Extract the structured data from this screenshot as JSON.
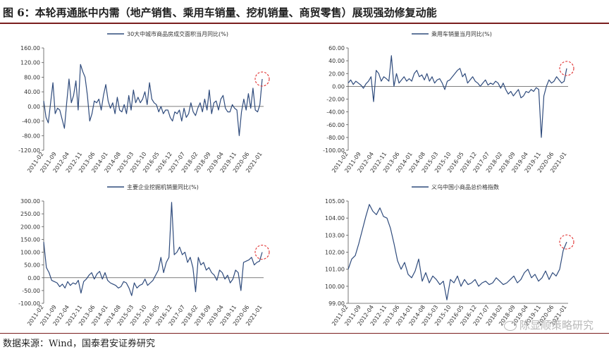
{
  "figure": {
    "title": "图 6：本轮再通胀中内需（地产销售、乘用车销量、挖机销量、商贸零售）展现强劲修复动能",
    "source": "数据来源：Wind，国泰君安证券研究",
    "watermark": "陈显顺策略研究",
    "line_color": "#2f4b7c",
    "highlight_color": "#e03030"
  },
  "chart_data": [
    {
      "type": "line",
      "series": [
        {
          "name": "30大中城市商品房成交面积当月同比(%)"
        }
      ],
      "ylim": [
        -120,
        160
      ],
      "yticks": [
        "160.00",
        "120.00",
        "80.00",
        "40.00",
        "0.00",
        "-40.00",
        "-80.00",
        "-120.00"
      ],
      "xlabels": [
        "2011-02",
        "2011-09",
        "2012-04",
        "2012-11",
        "2013-06",
        "2014-01",
        "2014-08",
        "2015-03",
        "2015-10",
        "2016-05",
        "2016-12",
        "2017-07",
        "2018-02",
        "2018-09",
        "2019-04",
        "2019-11",
        "2020-06",
        "2021-01"
      ],
      "values": [
        15,
        -30,
        -45,
        10,
        65,
        -20,
        -5,
        -10,
        -35,
        -60,
        10,
        75,
        10,
        30,
        70,
        -10,
        115,
        95,
        80,
        30,
        -40,
        -20,
        15,
        10,
        20,
        -10,
        30,
        60,
        15,
        -5,
        10,
        -20,
        25,
        -10,
        -15,
        5,
        -20,
        30,
        -10,
        45,
        10,
        25,
        10,
        20,
        40,
        5,
        65,
        20,
        10,
        5,
        -15,
        0,
        -20,
        -10,
        -10,
        -30,
        -40,
        -15,
        -20,
        -10,
        -40,
        -5,
        -30,
        -20,
        10,
        -15,
        -25,
        -5,
        10,
        -15,
        20,
        -10,
        45,
        -20,
        10,
        15,
        -10,
        20,
        30,
        -5,
        -15,
        -15,
        5,
        -5,
        -10,
        -80,
        -15,
        20,
        -10,
        35,
        -5,
        50,
        -10,
        -15,
        5,
        75
      ]
    },
    {
      "type": "line",
      "series": [
        {
          "name": "乘用车销量当月同比(%)"
        }
      ],
      "ylim": [
        -100,
        60
      ],
      "yticks": [
        "60.00",
        "40.00",
        "20.00",
        "0.00",
        "-20.00",
        "-40.00",
        "-60.00",
        "-80.00",
        "-100.00"
      ],
      "xlabels": [
        "2011-02",
        "2011-09",
        "2012-04",
        "2012-11",
        "2013-06",
        "2014-01",
        "2014-08",
        "2015-03",
        "2015-10",
        "2016-05",
        "2016-12",
        "2017-07",
        "2018-02",
        "2018-09",
        "2019-04",
        "2019-11",
        "2020-06",
        "2021-01"
      ],
      "values": [
        5,
        10,
        3,
        8,
        5,
        2,
        -3,
        4,
        8,
        15,
        -24,
        25,
        20,
        8,
        15,
        12,
        8,
        48,
        0,
        20,
        5,
        10,
        15,
        8,
        12,
        8,
        20,
        25,
        15,
        18,
        10,
        20,
        8,
        15,
        5,
        10,
        12,
        5,
        -5,
        8,
        10,
        15,
        20,
        25,
        28,
        15,
        20,
        5,
        10,
        15,
        8,
        5,
        0,
        5,
        10,
        2,
        5,
        3,
        8,
        5,
        -3,
        5,
        -5,
        -12,
        -8,
        -15,
        -10,
        -5,
        -18,
        -15,
        -8,
        -10,
        -5,
        -8,
        -2,
        -5,
        -80,
        -15,
        0,
        10,
        5,
        8,
        15,
        10,
        5,
        8,
        28
      ]
    },
    {
      "type": "line",
      "series": [
        {
          "name": "主要企业挖掘机销量同比(%)"
        }
      ],
      "ylim": [
        -100,
        300
      ],
      "yticks": [
        "300.00",
        "250.00",
        "200.00",
        "150.00",
        "100.00",
        "50.00",
        "0.00",
        "-50.00",
        "-100.00"
      ],
      "xlabels": [
        "2011-02",
        "2011-09",
        "2012-04",
        "2012-11",
        "2013-06",
        "2014-01",
        "2014-08",
        "2015-03",
        "2015-10",
        "2016-05",
        "2016-12",
        "2017-07",
        "2018-02",
        "2018-09",
        "2019-04",
        "2019-11",
        "2020-06",
        "2021-01"
      ],
      "values": [
        140,
        40,
        20,
        -10,
        -15,
        -20,
        -35,
        -25,
        -40,
        -15,
        -30,
        -20,
        -25,
        -10,
        -60,
        -15,
        -5,
        10,
        20,
        -5,
        15,
        25,
        -5,
        20,
        -10,
        -20,
        -25,
        -30,
        -40,
        -35,
        -15,
        -20,
        -40,
        -70,
        -20,
        -40,
        -30,
        -25,
        -5,
        -30,
        -20,
        -10,
        10,
        30,
        80,
        20,
        60,
        80,
        295,
        90,
        100,
        120,
        90,
        100,
        60,
        80,
        40,
        -55,
        80,
        50,
        60,
        30,
        40,
        20,
        10,
        -10,
        30,
        20,
        -5,
        10,
        -20,
        -5,
        30,
        20,
        -50,
        60,
        65,
        70,
        80,
        50,
        60,
        65,
        100
      ]
    },
    {
      "type": "line",
      "series": [
        {
          "name": "义乌中国小商品总价格指数"
        }
      ],
      "ylim": [
        99,
        105
      ],
      "yticks": [
        "105.00",
        "104.00",
        "103.00",
        "102.00",
        "101.00",
        "100.00",
        "99.00"
      ],
      "xlabels": [
        "2011-02",
        "2011-09",
        "2012-04",
        "2012-11",
        "2013-06",
        "2014-01",
        "2014-08",
        "2015-03",
        "2015-10",
        "2016-05",
        "2016-12",
        "2017-07",
        "2018-02",
        "2018-09",
        "2019-04",
        "2019-11",
        "2020-06",
        "2021-01"
      ],
      "values": [
        101.0,
        101.6,
        101.8,
        102.5,
        103.3,
        104.1,
        104.8,
        104.4,
        104.2,
        104.6,
        104.1,
        104.0,
        103.4,
        102.5,
        101.5,
        101.0,
        101.4,
        100.7,
        100.5,
        100.9,
        101.6,
        100.3,
        100.8,
        100.2,
        100.6,
        100.4,
        100.1,
        100.3,
        99.2,
        100.4,
        100.2,
        100.6,
        100.0,
        100.4,
        100.1,
        100.2,
        100.4,
        100.0,
        100.2,
        100.3,
        100.1,
        100.2,
        100.5,
        100.3,
        100.1,
        100.2,
        100.4,
        100.6,
        100.2,
        100.4,
        100.8,
        101.0,
        100.5,
        100.7,
        100.3,
        100.5,
        100.9,
        100.4,
        100.8,
        100.6,
        101.0,
        102.1,
        102.6
      ]
    }
  ]
}
